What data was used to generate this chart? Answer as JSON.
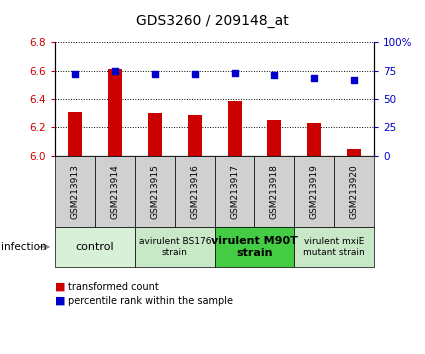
{
  "title": "GDS3260 / 209148_at",
  "samples": [
    "GSM213913",
    "GSM213914",
    "GSM213915",
    "GSM213916",
    "GSM213917",
    "GSM213918",
    "GSM213919",
    "GSM213920"
  ],
  "bar_values": [
    6.31,
    6.61,
    6.3,
    6.29,
    6.39,
    6.25,
    6.23,
    6.05
  ],
  "dot_values": [
    72,
    75,
    72,
    72,
    73,
    71,
    69,
    67
  ],
  "ylim_left": [
    6.0,
    6.8
  ],
  "ylim_right": [
    0,
    100
  ],
  "yticks_left": [
    6.0,
    6.2,
    6.4,
    6.6,
    6.8
  ],
  "yticks_right": [
    0,
    25,
    50,
    75,
    100
  ],
  "bar_color": "#cc0000",
  "dot_color": "#0000cc",
  "bar_bottom": 6.0,
  "groups": [
    {
      "label": "control",
      "start": 0,
      "end": 2,
      "color": "#d8f0d8",
      "fontsize": 8,
      "bold": false
    },
    {
      "label": "avirulent BS176\nstrain",
      "start": 2,
      "end": 4,
      "color": "#c8e8c8",
      "fontsize": 6.5,
      "bold": false
    },
    {
      "label": "virulent M90T\nstrain",
      "start": 4,
      "end": 6,
      "color": "#44cc44",
      "fontsize": 8,
      "bold": true
    },
    {
      "label": "virulent mxiE\nmutant strain",
      "start": 6,
      "end": 8,
      "color": "#c8e8c8",
      "fontsize": 6.5,
      "bold": false
    }
  ],
  "infection_label": "infection",
  "legend_bar_label": "transformed count",
  "legend_dot_label": "percentile rank within the sample",
  "tick_label_color_left": "#cc0000",
  "tick_label_color_right": "#0000cc",
  "bg_color": "#ffffff",
  "sample_box_color": "#d0d0d0",
  "title_fontsize": 10,
  "sample_fontsize": 6.5
}
